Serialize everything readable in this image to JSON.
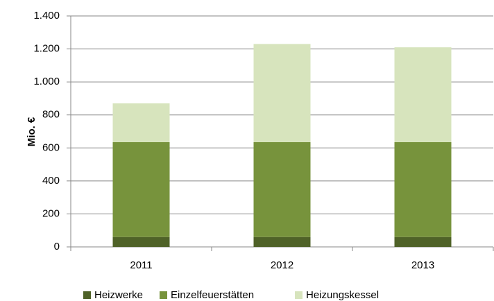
{
  "chart_data": {
    "type": "stacked_bar",
    "y_label": "Mio. €",
    "categories": [
      "2011",
      "2012",
      "2013"
    ],
    "series": [
      {
        "name": "Heizwerke",
        "color": "#4f6228",
        "values": [
          60,
          60,
          60
        ]
      },
      {
        "name": "Einzelfeuerstätten",
        "color": "#77933c",
        "values": [
          575,
          575,
          575
        ]
      },
      {
        "name": "Heizungskessel",
        "color": "#d7e4bd",
        "values": [
          235,
          595,
          575
        ]
      }
    ],
    "ylim": [
      0,
      1400
    ],
    "yticks": [
      0,
      200,
      400,
      600,
      800,
      {
        "value": 1000,
        "label": "1.000"
      },
      {
        "value": 1200,
        "label": "1.200"
      },
      {
        "value": 1400,
        "label": "1.400"
      }
    ],
    "grid": true,
    "legend": "bottom"
  }
}
